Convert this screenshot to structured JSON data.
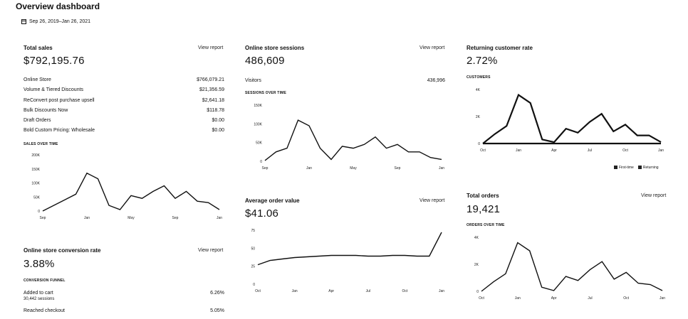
{
  "page_title": "Overview dashboard",
  "date_range": "Sep 26, 2019–Jan 26, 2021",
  "total_sales": {
    "title": "Total sales",
    "view_report": "View report",
    "value": "$792,195.76",
    "rows": [
      {
        "label": "Online Store",
        "value": "$766,079.21"
      },
      {
        "label": "Volume & Tiered Discounts",
        "value": "$21,356.59"
      },
      {
        "label": "ReConvert post purchase upsell",
        "value": "$2,641.18"
      },
      {
        "label": "Bulk Discounts Now",
        "value": "$118.78"
      },
      {
        "label": "Draft Orders",
        "value": "$0.00"
      },
      {
        "label": "Bold Custom Pricing: Wholesale",
        "value": "$0.00"
      }
    ],
    "chart_caption": "SALES OVER TIME",
    "y_ticks": [
      "200K",
      "150K",
      "100K",
      "50K",
      "0"
    ],
    "x_ticks": [
      "Sep",
      "Jan",
      "May",
      "Sep",
      "Jan"
    ]
  },
  "sessions": {
    "title": "Online store sessions",
    "view_report": "View report",
    "value": "486,609",
    "visitors_label": "Visitors",
    "visitors_value": "436,996",
    "chart_caption": "SESSIONS OVER TIME",
    "y_ticks": [
      "150K",
      "100K",
      "50K",
      "0"
    ],
    "x_ticks": [
      "Sep",
      "Jan",
      "May",
      "Sep",
      "Jan"
    ]
  },
  "returning": {
    "title": "Returning customer rate",
    "value": "2.72%",
    "chart_caption": "CUSTOMERS",
    "y_ticks": [
      "4K",
      "2K",
      "0"
    ],
    "x_ticks": [
      "Oct",
      "Jan",
      "Apr",
      "Jul",
      "Oct",
      "Jan"
    ],
    "legend": [
      "First-time",
      "Returning"
    ]
  },
  "conversion": {
    "title": "Online store conversion rate",
    "view_report": "View report",
    "value": "3.88%",
    "funnel_caption": "CONVERSION FUNNEL",
    "rows": [
      {
        "label": "Added to cart",
        "sub": "30,442 sessions",
        "value": "6.26%"
      },
      {
        "label": "Reached checkout",
        "sub": "",
        "value": "5.05%"
      }
    ]
  },
  "aov": {
    "title": "Average order value",
    "view_report": "View report",
    "value": "$41.06",
    "y_ticks": [
      "75",
      "50",
      "25",
      "0"
    ],
    "x_ticks": [
      "Oct",
      "Jan",
      "Apr",
      "Jul",
      "Oct",
      "Jan"
    ]
  },
  "orders": {
    "title": "Total orders",
    "view_report": "View report",
    "value": "19,421",
    "chart_caption": "ORDERS OVER TIME",
    "y_ticks": [
      "4K",
      "2K",
      "0"
    ],
    "x_ticks": [
      "Oct",
      "Jan",
      "Apr",
      "Jul",
      "Oct",
      "Jan"
    ]
  },
  "chart_data": [
    {
      "type": "line",
      "id": "sales",
      "x": [
        "Sep",
        "Oct",
        "Nov",
        "Dec",
        "Jan",
        "Feb",
        "Mar",
        "Apr",
        "May",
        "Jun",
        "Jul",
        "Aug",
        "Sep",
        "Oct",
        "Nov",
        "Dec",
        "Jan"
      ],
      "values": [
        0,
        20,
        40,
        60,
        135,
        115,
        20,
        5,
        55,
        45,
        70,
        90,
        45,
        70,
        35,
        30,
        5
      ],
      "ylim": [
        0,
        200
      ],
      "ylabel_unit": "K"
    },
    {
      "type": "line",
      "id": "sessions",
      "x": [
        "Sep",
        "Oct",
        "Nov",
        "Dec",
        "Jan",
        "Feb",
        "Mar",
        "Apr",
        "May",
        "Jun",
        "Jul",
        "Aug",
        "Sep",
        "Oct",
        "Nov",
        "Dec",
        "Jan"
      ],
      "values": [
        2,
        25,
        35,
        110,
        95,
        35,
        5,
        40,
        35,
        45,
        65,
        35,
        45,
        25,
        25,
        10,
        5
      ],
      "ylim": [
        0,
        150
      ],
      "ylabel_unit": "K"
    },
    {
      "type": "line",
      "id": "customers",
      "x": [
        "Oct",
        "Nov",
        "Dec",
        "Jan",
        "Feb",
        "Mar",
        "Apr",
        "May",
        "Jun",
        "Jul",
        "Aug",
        "Sep",
        "Oct",
        "Nov",
        "Dec",
        "Jan"
      ],
      "series": [
        {
          "name": "First-time",
          "values": [
            0,
            0.7,
            1.3,
            3.6,
            3.0,
            0.3,
            0.1,
            1.1,
            0.8,
            1.6,
            2.2,
            0.9,
            1.4,
            0.6,
            0.6,
            0.1
          ]
        },
        {
          "name": "Returning",
          "values": [
            0,
            0,
            0,
            0,
            0,
            0,
            0,
            0,
            0,
            0,
            0,
            0,
            0,
            0,
            0,
            0
          ]
        }
      ],
      "ylim": [
        0,
        4
      ],
      "ylabel_unit": "K"
    },
    {
      "type": "line",
      "id": "aov",
      "x": [
        "Oct",
        "Nov",
        "Dec",
        "Jan",
        "Feb",
        "Mar",
        "Apr",
        "May",
        "Jun",
        "Jul",
        "Aug",
        "Sep",
        "Oct",
        "Nov",
        "Dec",
        "Jan"
      ],
      "values": [
        27,
        33,
        35,
        37,
        38,
        39,
        40,
        40,
        40,
        39,
        39,
        40,
        40,
        39,
        39,
        72
      ],
      "ylim": [
        0,
        75
      ]
    },
    {
      "type": "line",
      "id": "orders",
      "x": [
        "Oct",
        "Nov",
        "Dec",
        "Jan",
        "Feb",
        "Mar",
        "Apr",
        "May",
        "Jun",
        "Jul",
        "Aug",
        "Sep",
        "Oct",
        "Nov",
        "Dec",
        "Jan"
      ],
      "values": [
        0,
        0.7,
        1.3,
        3.6,
        3.0,
        0.3,
        0.05,
        1.1,
        0.8,
        1.6,
        2.2,
        0.9,
        1.4,
        0.6,
        0.5,
        0.05
      ],
      "ylim": [
        0,
        4
      ],
      "ylabel_unit": "K"
    }
  ]
}
